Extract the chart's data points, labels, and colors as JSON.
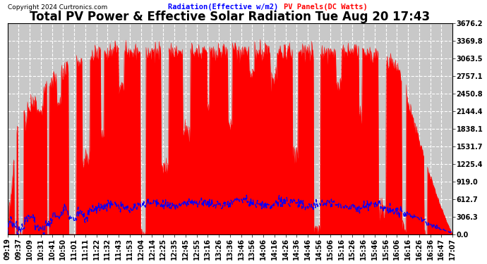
{
  "title": "Total PV Power & Effective Solar Radiation Tue Aug 20 17:43",
  "copyright": "Copyright 2024 Curtronics.com",
  "legend_radiation": "Radiation(Effective w/m2)",
  "legend_pv": "PV Panels(DC Watts)",
  "yticks": [
    0.0,
    306.3,
    612.7,
    919.0,
    1225.4,
    1531.7,
    1838.1,
    2144.4,
    2450.8,
    2757.1,
    3063.5,
    3369.8,
    3676.2
  ],
  "ymax": 3676.2,
  "ymin": 0.0,
  "bg_color": "#ffffff",
  "plot_bg_color": "#c8c8c8",
  "pv_color": "#ff0000",
  "radiation_color": "#0000ff",
  "grid_color": "#ffffff",
  "title_fontsize": 12,
  "tick_fontsize": 7,
  "time_labels": [
    "09:19",
    "09:37",
    "10:09",
    "10:31",
    "10:41",
    "10:50",
    "11:01",
    "11:11",
    "11:22",
    "11:32",
    "11:43",
    "11:53",
    "12:04",
    "12:14",
    "12:25",
    "12:35",
    "12:45",
    "12:55",
    "13:16",
    "13:26",
    "13:36",
    "13:46",
    "13:56",
    "14:06",
    "14:16",
    "14:26",
    "14:36",
    "14:46",
    "14:56",
    "15:06",
    "15:16",
    "15:26",
    "15:36",
    "15:46",
    "15:56",
    "16:06",
    "16:16",
    "16:26",
    "16:36",
    "16:47",
    "17:07"
  ]
}
